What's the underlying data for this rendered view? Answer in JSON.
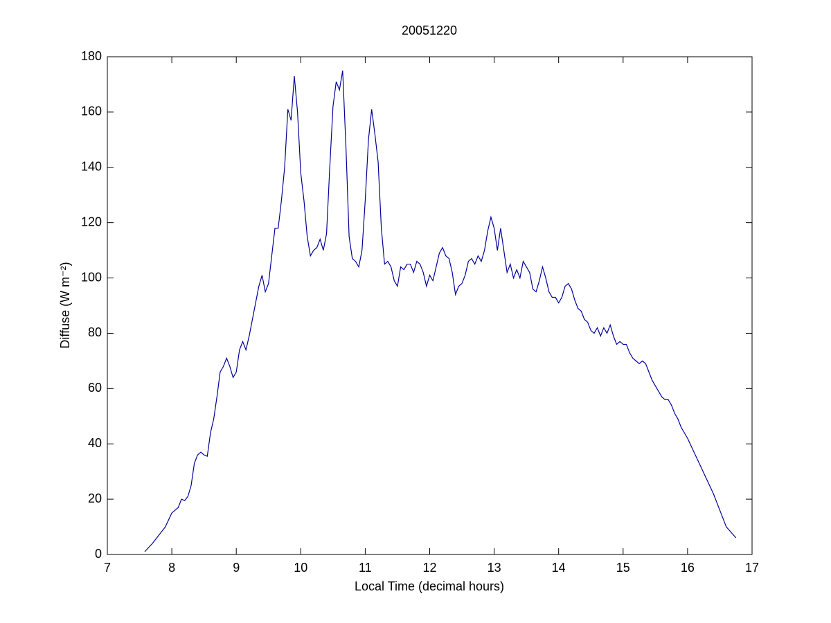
{
  "chart_data": {
    "type": "line",
    "title": "20051220",
    "x_label": "Local Time (decimal hours)",
    "y_label": "Diffuse (W m⁻²)",
    "xlim": [
      7,
      17
    ],
    "xticks": [
      7,
      8,
      9,
      10,
      11,
      12,
      13,
      14,
      15,
      16,
      17
    ],
    "ylim": [
      0,
      180
    ],
    "yticks": [
      0,
      20,
      40,
      60,
      80,
      100,
      120,
      140,
      160,
      180
    ],
    "grid": false,
    "box": true,
    "series": [
      {
        "name": "Diffuse",
        "color": "#000099",
        "x": [
          7.58,
          7.7,
          7.8,
          7.9,
          8.0,
          8.1,
          8.15,
          8.2,
          8.25,
          8.3,
          8.35,
          8.4,
          8.45,
          8.5,
          8.55,
          8.6,
          8.65,
          8.7,
          8.75,
          8.8,
          8.85,
          8.9,
          8.95,
          9.0,
          9.05,
          9.1,
          9.15,
          9.2,
          9.25,
          9.3,
          9.35,
          9.4,
          9.45,
          9.5,
          9.55,
          9.6,
          9.65,
          9.7,
          9.75,
          9.8,
          9.85,
          9.9,
          9.95,
          10.0,
          10.05,
          10.1,
          10.15,
          10.2,
          10.25,
          10.3,
          10.35,
          10.4,
          10.45,
          10.5,
          10.55,
          10.6,
          10.65,
          10.7,
          10.75,
          10.8,
          10.85,
          10.9,
          10.95,
          11.0,
          11.05,
          11.1,
          11.15,
          11.2,
          11.25,
          11.3,
          11.35,
          11.4,
          11.45,
          11.5,
          11.55,
          11.6,
          11.65,
          11.7,
          11.75,
          11.8,
          11.85,
          11.9,
          11.95,
          12.0,
          12.05,
          12.1,
          12.15,
          12.2,
          12.25,
          12.3,
          12.35,
          12.4,
          12.45,
          12.5,
          12.55,
          12.6,
          12.65,
          12.7,
          12.75,
          12.8,
          12.85,
          12.9,
          12.95,
          13.0,
          13.05,
          13.1,
          13.15,
          13.2,
          13.25,
          13.3,
          13.35,
          13.4,
          13.45,
          13.5,
          13.55,
          13.6,
          13.65,
          13.7,
          13.75,
          13.8,
          13.85,
          13.9,
          13.95,
          14.0,
          14.05,
          14.1,
          14.15,
          14.2,
          14.25,
          14.3,
          14.35,
          14.4,
          14.45,
          14.5,
          14.55,
          14.6,
          14.65,
          14.7,
          14.75,
          14.8,
          14.85,
          14.9,
          14.95,
          15.0,
          15.05,
          15.1,
          15.15,
          15.2,
          15.25,
          15.3,
          15.35,
          15.4,
          15.45,
          15.5,
          15.55,
          15.6,
          15.65,
          15.7,
          15.75,
          15.8,
          15.85,
          15.9,
          16.0,
          16.1,
          16.2,
          16.3,
          16.4,
          16.5,
          16.6,
          16.75
        ],
        "values": [
          1,
          4,
          7,
          10,
          15,
          17,
          20,
          19.5,
          21,
          25,
          33,
          36,
          37,
          36,
          35.5,
          44,
          49,
          57,
          66,
          68,
          71,
          68,
          64,
          66,
          74,
          77,
          74,
          79,
          85,
          91,
          97,
          101,
          95,
          98,
          108,
          118,
          118,
          128,
          140,
          161,
          157,
          173,
          160,
          138,
          128,
          115,
          108,
          110,
          111,
          114,
          110,
          116,
          140,
          162,
          171,
          168,
          175,
          148,
          115,
          107,
          106,
          104,
          110,
          128,
          150,
          161,
          152,
          142,
          118,
          105,
          106,
          104,
          99,
          97,
          104,
          103,
          105,
          105,
          102,
          106,
          105,
          102,
          97,
          101,
          99,
          104,
          109,
          111,
          108,
          107,
          102,
          94,
          97,
          98,
          101,
          106,
          107,
          105,
          108,
          106,
          110,
          117,
          122,
          118,
          110,
          118,
          110,
          102,
          105,
          100,
          103,
          100,
          106,
          104,
          102,
          96,
          95,
          99,
          104,
          100,
          95,
          93,
          93,
          91,
          93,
          97,
          98,
          96,
          92,
          89,
          88,
          85,
          84,
          81,
          80,
          82,
          79,
          82,
          80,
          83,
          79,
          76,
          77,
          76,
          76,
          73,
          71,
          70,
          69,
          70,
          69,
          66,
          63,
          61,
          59,
          57,
          56,
          56,
          54,
          51,
          49,
          46,
          42,
          37,
          32,
          27,
          22,
          16,
          10,
          6
        ]
      }
    ]
  }
}
